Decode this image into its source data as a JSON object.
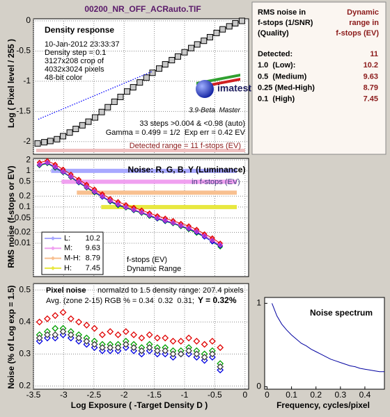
{
  "file_title": "00200_NR_OFF_ACRauto.TIF",
  "summary": {
    "header_left": [
      "RMS noise in",
      "f-stops (1/SNR)",
      "(Quality)"
    ],
    "header_right": [
      "Dynamic",
      "range in",
      "f-stops (EV)"
    ],
    "rows": [
      {
        "label": "Detected:",
        "value": 11
      },
      {
        "label": "1.0  (Low):",
        "value": 10.2
      },
      {
        "label": "0.5  (Medium)",
        "value": 9.63
      },
      {
        "label": "0.25 (Med-High)",
        "value": 8.79
      },
      {
        "label": "0.1  (High)",
        "value": 7.45
      }
    ]
  },
  "chart_data": [
    {
      "type": "line",
      "title": "Density response",
      "notes": [
        "10-Jan-2012 23:33:37",
        "Density step = 0.1",
        "3127x208 crop of",
        "4032x3024 pixels",
        "48-bit color"
      ],
      "logo": "imatest",
      "version": "3.9-Beta  Master",
      "stats": [
        "33 steps >0.004 & <0.98 (auto)",
        "Gamma = 0.499 = 1/2  Exp err = 0.42 EV"
      ],
      "detected_range": "Detected range = 11 f-stops (EV)",
      "ylabel": "Log ( Pixel level / 255 )",
      "xlim": [
        -3.5,
        0.06
      ],
      "ylim": [
        -2.21,
        0.035
      ],
      "xticks": [
        -3.5,
        -3,
        -2.5,
        -2,
        -1.5,
        -1,
        -0.5,
        0
      ],
      "xtick_labels": false,
      "yticks": [
        0,
        -0.5,
        -1,
        -1.5,
        -2
      ],
      "grid": true,
      "x": [
        -3.43,
        -3.32,
        -3.22,
        -3.11,
        -3.01,
        -2.9,
        -2.8,
        -2.69,
        -2.59,
        -2.48,
        -2.37,
        -2.27,
        -2.16,
        -2.06,
        -1.95,
        -1.85,
        -1.74,
        -1.63,
        -1.53,
        -1.42,
        -1.32,
        -1.21,
        -1.11,
        -1.0,
        -0.89,
        -0.79,
        -0.68,
        -0.58,
        -0.47,
        -0.37,
        -0.26,
        -0.16,
        -0.05
      ],
      "series": [
        {
          "color": "#000000",
          "fill": "#c8c8c8",
          "marker": "square",
          "line": true,
          "values": [
            -2.03,
            -2.01,
            -1.99,
            -1.96,
            -1.91,
            -1.85,
            -1.79,
            -1.73,
            -1.67,
            -1.6,
            -1.51,
            -1.43,
            -1.34,
            -1.26,
            -1.17,
            -1.1,
            -1.02,
            -0.94,
            -0.86,
            -0.79,
            -0.72,
            -0.65,
            -0.59,
            -0.52,
            -0.45,
            -0.39,
            -0.33,
            -0.27,
            -0.2,
            -0.14,
            -0.09,
            -0.04,
            0.0
          ]
        },
        {
          "color": "#0000ff",
          "line": "dotted",
          "x": [
            -3.42,
            -1.54
          ],
          "values": [
            -1.63,
            -0.84
          ]
        }
      ]
    },
    {
      "type": "line",
      "log_y": true,
      "title": "Noise: R, G, B, Y (Luminance)",
      "subtitle": "in f-stops (EV)",
      "ylabel": "RMS noise (f-stops or EV)",
      "xlim": [
        -3.5,
        0.06
      ],
      "ylim": [
        0.0012,
        2.2
      ],
      "xticks": [
        -3.5,
        -3,
        -2.5,
        -2,
        -1.5,
        -1,
        -0.5,
        0
      ],
      "xtick_labels": false,
      "yticks": [
        2,
        1,
        0.5,
        0.2,
        0.1,
        0.05,
        0.02,
        0.01
      ],
      "grid": true,
      "x": [
        -3.4,
        -3.27,
        -3.14,
        -3.01,
        -2.88,
        -2.75,
        -2.62,
        -2.49,
        -2.36,
        -2.23,
        -2.1,
        -1.97,
        -1.84,
        -1.71,
        -1.58,
        -1.45,
        -1.32,
        -1.19,
        -1.06,
        -0.93,
        -0.8,
        -0.67,
        -0.54,
        -0.41
      ],
      "series": [
        {
          "color": "#e00000",
          "marker": "diamond",
          "line": true,
          "values": [
            1.7,
            1.9,
            1.5,
            1.1,
            0.8,
            0.58,
            0.42,
            0.31,
            0.23,
            0.17,
            0.14,
            0.115,
            0.097,
            0.082,
            0.068,
            0.057,
            0.049,
            0.042,
            0.035,
            0.03,
            0.024,
            0.018,
            0.014,
            0.01
          ]
        },
        {
          "color": "#00a000",
          "marker": "diamond",
          "line": true,
          "values": [
            1.4,
            1.6,
            1.2,
            0.9,
            0.66,
            0.47,
            0.34,
            0.25,
            0.19,
            0.14,
            0.11,
            0.095,
            0.08,
            0.068,
            0.056,
            0.047,
            0.04,
            0.035,
            0.029,
            0.024,
            0.019,
            0.015,
            0.011,
            0.008
          ]
        },
        {
          "color": "#0000e0",
          "marker": "diamond",
          "line": true,
          "values": [
            1.45,
            1.65,
            1.25,
            0.92,
            0.68,
            0.48,
            0.35,
            0.26,
            0.19,
            0.145,
            0.115,
            0.097,
            0.082,
            0.07,
            0.058,
            0.048,
            0.041,
            0.036,
            0.03,
            0.025,
            0.02,
            0.015,
            0.011,
            0.0085
          ]
        },
        {
          "color": "#d040d0",
          "marker": "diamond",
          "line": true,
          "values": [
            1.5,
            1.7,
            1.3,
            0.95,
            0.7,
            0.5,
            0.36,
            0.27,
            0.2,
            0.15,
            0.12,
            0.1,
            0.085,
            0.072,
            0.06,
            0.05,
            0.043,
            0.037,
            0.031,
            0.026,
            0.021,
            0.016,
            0.012,
            0.009
          ]
        }
      ],
      "levels": [
        {
          "name": "L:",
          "value": 10.2,
          "threshold": 1.0,
          "color": "#a8a8ff"
        },
        {
          "name": "M:",
          "value": 9.63,
          "threshold": 0.5,
          "color": "#f0a0f0"
        },
        {
          "name": "M-H:",
          "value": 8.79,
          "threshold": 0.25,
          "color": "#f8c090"
        },
        {
          "name": "H:",
          "value": 7.45,
          "threshold": 0.1,
          "color": "#e8e840"
        }
      ],
      "legend": "lower left",
      "legend_notes": [
        "f-stops (EV)",
        "Dynamic Range"
      ]
    },
    {
      "type": "scatter",
      "title": "Pixel noise",
      "subtitle": "normalzd to 1.5 density range: 207.4 pixels",
      "notes": [
        "Avg. (zone 2-15) RGB % = 0.34  0.32  0.31;"
      ],
      "annotation": "Y = 0.32%",
      "ylabel": "Noise (% of Log exp = 1.5)",
      "xlabel": "Log Exposure ( -Target Density D )",
      "xlim": [
        -3.5,
        0.06
      ],
      "ylim": [
        0.19,
        0.52
      ],
      "xticks": [
        -3.5,
        -3,
        -2.5,
        -2,
        -1.5,
        -1,
        -0.5,
        0
      ],
      "yticks": [
        0.2,
        0.3,
        0.4,
        0.5
      ],
      "grid": true,
      "x": [
        -3.4,
        -3.27,
        -3.14,
        -3.01,
        -2.88,
        -2.75,
        -2.62,
        -2.49,
        -2.36,
        -2.23,
        -2.1,
        -1.97,
        -1.84,
        -1.71,
        -1.58,
        -1.45,
        -1.32,
        -1.19,
        -1.06,
        -0.93,
        -0.8,
        -0.67,
        -0.54,
        -0.41
      ],
      "series": [
        {
          "color": "#e00000",
          "marker": "diamond-open",
          "values": [
            0.4,
            0.41,
            0.42,
            0.43,
            0.41,
            0.4,
            0.39,
            0.38,
            0.36,
            0.37,
            0.36,
            0.37,
            0.36,
            0.35,
            0.36,
            0.35,
            0.35,
            0.34,
            0.34,
            0.35,
            0.34,
            0.33,
            0.34,
            0.32
          ]
        },
        {
          "color": "#00a000",
          "marker": "diamond-open",
          "values": [
            0.36,
            0.37,
            0.38,
            0.38,
            0.37,
            0.36,
            0.35,
            0.34,
            0.33,
            0.33,
            0.33,
            0.34,
            0.33,
            0.32,
            0.33,
            0.32,
            0.32,
            0.31,
            0.31,
            0.32,
            0.31,
            0.3,
            0.31,
            0.27
          ]
        },
        {
          "color": "#0000e0",
          "marker": "diamond-open",
          "values": [
            0.34,
            0.35,
            0.35,
            0.36,
            0.35,
            0.34,
            0.33,
            0.32,
            0.31,
            0.31,
            0.31,
            0.32,
            0.31,
            0.3,
            0.31,
            0.3,
            0.3,
            0.29,
            0.3,
            0.3,
            0.29,
            0.28,
            0.29,
            0.25
          ]
        },
        {
          "color": "#404040",
          "marker": "diamond-open",
          "values": [
            0.35,
            0.36,
            0.36,
            0.37,
            0.36,
            0.35,
            0.34,
            0.33,
            0.32,
            0.32,
            0.32,
            0.33,
            0.32,
            0.31,
            0.32,
            0.31,
            0.31,
            0.3,
            0.3,
            0.31,
            0.3,
            0.29,
            0.3,
            0.26
          ]
        }
      ]
    },
    {
      "type": "line",
      "title": "Noise spectrum",
      "xlabel": "Frequency, cycles/pixel",
      "xlim": [
        -0.01,
        0.48
      ],
      "ylim": [
        -0.03,
        1.07
      ],
      "xticks": [
        0,
        0.1,
        0.2,
        0.3,
        0.4
      ],
      "yticks": [
        0,
        1
      ],
      "grid": false,
      "x": [
        0.02,
        0.04,
        0.06,
        0.08,
        0.1,
        0.12,
        0.14,
        0.16,
        0.18,
        0.2,
        0.22,
        0.24,
        0.26,
        0.28,
        0.3,
        0.32,
        0.34,
        0.36,
        0.38,
        0.4,
        0.42,
        0.44,
        0.46,
        0.48
      ],
      "series": [
        {
          "color": "#0000a0",
          "line": true,
          "values": [
            1.0,
            0.85,
            0.75,
            0.68,
            0.62,
            0.57,
            0.52,
            0.49,
            0.45,
            0.42,
            0.39,
            0.36,
            0.33,
            0.31,
            0.29,
            0.27,
            0.25,
            0.24,
            0.22,
            0.21,
            0.2,
            0.19,
            0.18,
            0.18
          ]
        }
      ]
    }
  ]
}
